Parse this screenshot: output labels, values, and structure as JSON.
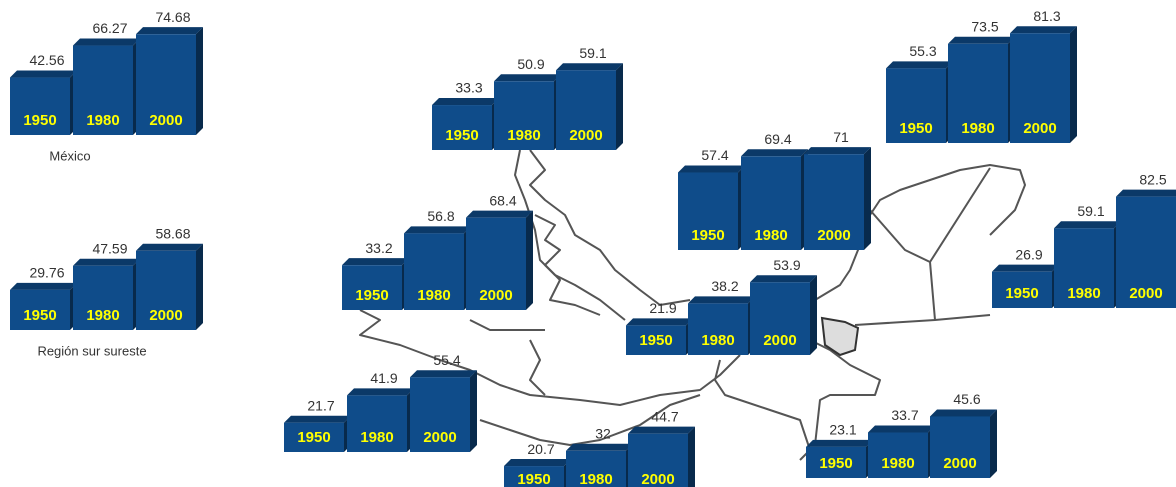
{
  "chart_data": [
    {
      "type": "bar",
      "label": "México",
      "categories": [
        "1950",
        "1980",
        "2000"
      ],
      "values": [
        42.56,
        66.27,
        74.68
      ],
      "color": "#0f4c8a",
      "label_color": "#ffff00"
    },
    {
      "type": "bar",
      "label": "Región sur sureste",
      "categories": [
        "1950",
        "1980",
        "2000"
      ],
      "values": [
        29.76,
        47.59,
        58.68
      ],
      "color": "#0f4c8a",
      "label_color": "#ffff00"
    },
    {
      "type": "bar",
      "categories": [
        "1950",
        "1980",
        "2000"
      ],
      "values": [
        33.3,
        50.9,
        59.1
      ],
      "color": "#0f4c8a",
      "label_color": "#ffff00"
    },
    {
      "type": "bar",
      "categories": [
        "1950",
        "1980",
        "2000"
      ],
      "values": [
        57.4,
        69.4,
        71
      ],
      "color": "#0f4c8a",
      "label_color": "#ffff00"
    },
    {
      "type": "bar",
      "categories": [
        "1950",
        "1980",
        "2000"
      ],
      "values": [
        55.3,
        73.5,
        81.3
      ],
      "color": "#0f4c8a",
      "label_color": "#ffff00"
    },
    {
      "type": "bar",
      "categories": [
        "1950",
        "1980",
        "2000"
      ],
      "values": [
        33.2,
        56.8,
        68.4
      ],
      "color": "#0f4c8a",
      "label_color": "#ffff00"
    },
    {
      "type": "bar",
      "categories": [
        "1950",
        "1980",
        "2000"
      ],
      "values": [
        26.9,
        59.1,
        82.5
      ],
      "color": "#0f4c8a",
      "label_color": "#ffff00"
    },
    {
      "type": "bar",
      "categories": [
        "1950",
        "1980",
        "2000"
      ],
      "values": [
        21.9,
        38.2,
        53.9
      ],
      "color": "#0f4c8a",
      "label_color": "#ffff00"
    },
    {
      "type": "bar",
      "categories": [
        "1950",
        "1980",
        "2000"
      ],
      "values": [
        21.7,
        41.9,
        55.4
      ],
      "color": "#0f4c8a",
      "label_color": "#ffff00"
    },
    {
      "type": "bar",
      "categories": [
        "1950",
        "1980",
        "2000"
      ],
      "values": [
        23.1,
        33.7,
        45.6
      ],
      "color": "#0f4c8a",
      "label_color": "#ffff00"
    },
    {
      "type": "bar",
      "categories": [
        "1950",
        "1980",
        "2000"
      ],
      "values": [
        20.7,
        32,
        44.7
      ],
      "color": "#0f4c8a",
      "label_color": "#ffff00"
    }
  ]
}
